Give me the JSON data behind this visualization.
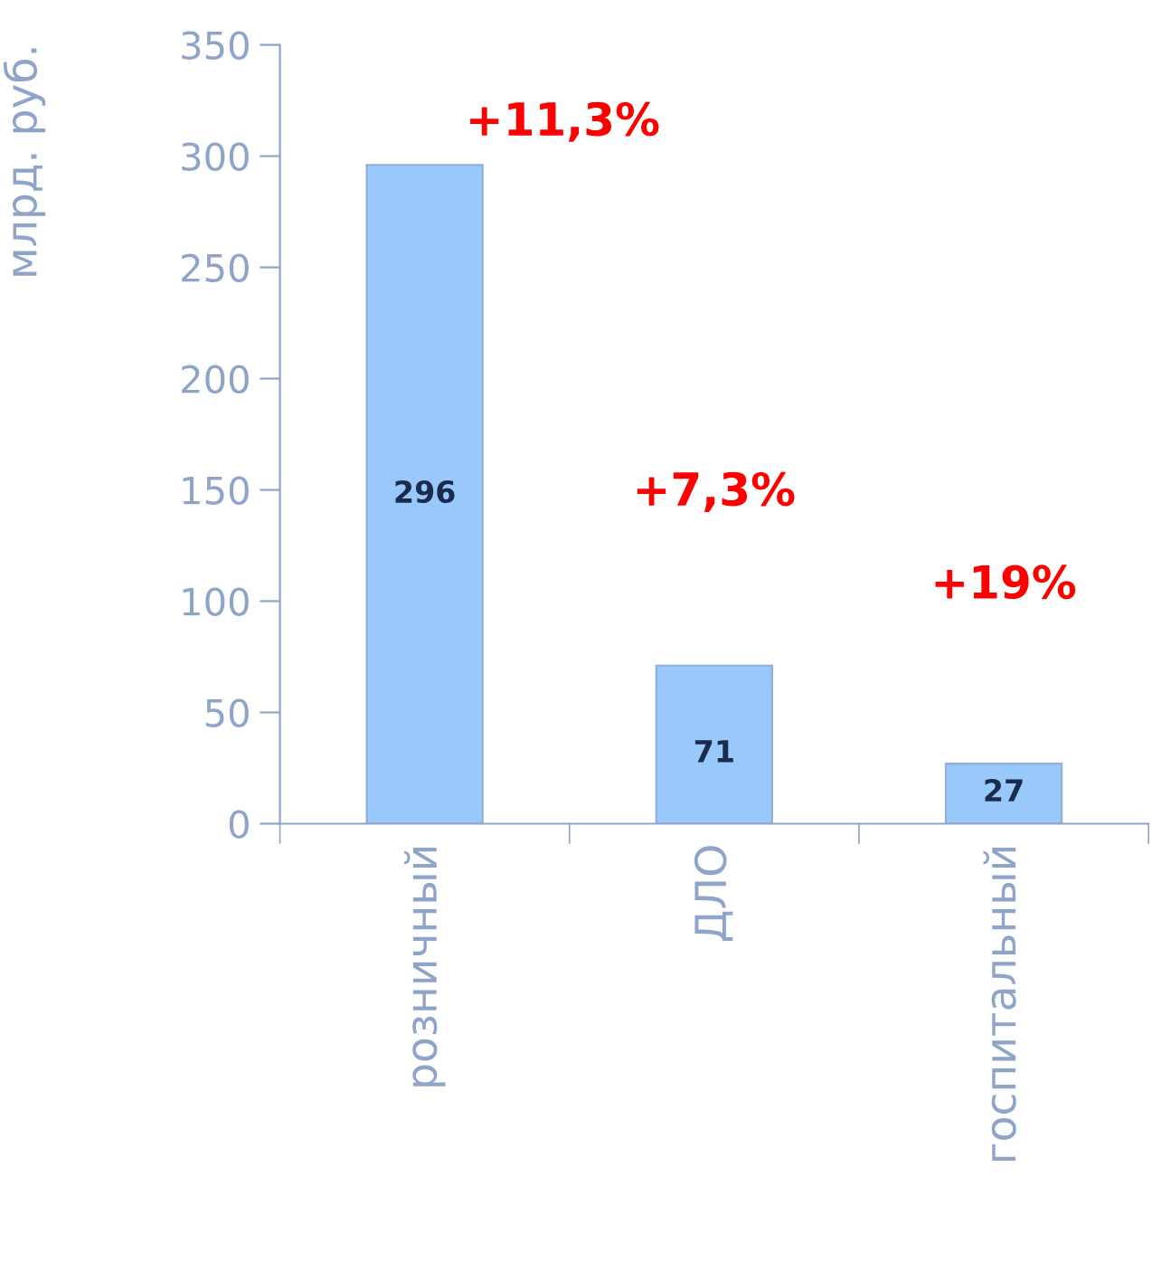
{
  "chart_data": {
    "type": "bar",
    "ylabel": "млрд. руб.",
    "categories": [
      "розничный",
      "ДЛО",
      "госпитальный"
    ],
    "values": [
      296,
      71,
      27
    ],
    "color": "#99c9fb",
    "data_labels": true,
    "ylim": [
      0,
      350
    ],
    "yticks": [
      0,
      50,
      100,
      150,
      200,
      250,
      300,
      350
    ],
    "grid": false,
    "annotations": [
      "+11,3%",
      "+7,3%",
      "+19%"
    ]
  }
}
